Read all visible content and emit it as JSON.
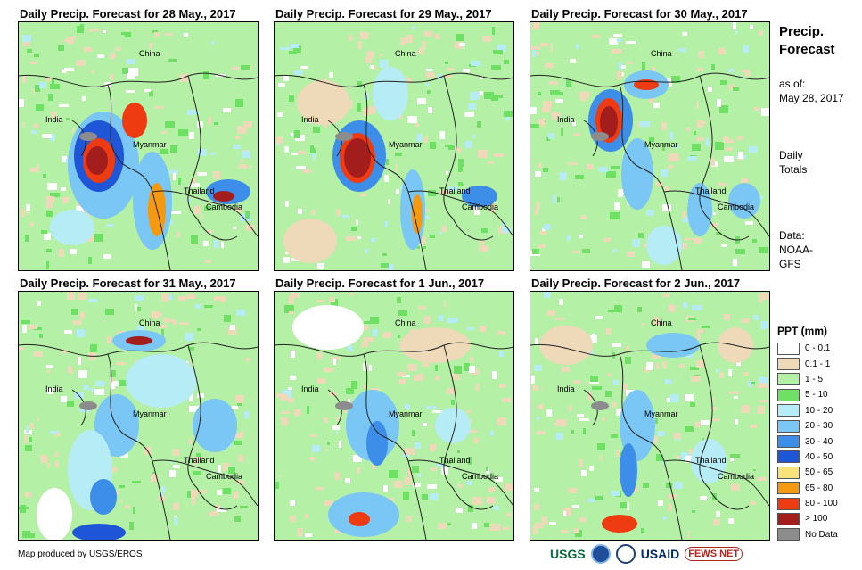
{
  "panels": [
    {
      "title": "Daily Precip. Forecast for 28 May., 2017",
      "labels": {
        "china": "China",
        "india": "India",
        "myanmar": "Myanmar",
        "thailand": "Thailand",
        "cambodia": "Cambodia"
      }
    },
    {
      "title": "Daily Precip. Forecast for 29 May., 2017",
      "labels": {
        "china": "China",
        "india": "India",
        "myanmar": "Myanmar",
        "thailand": "Thailand",
        "cambodia": "Cambodia"
      }
    },
    {
      "title": "Daily Precip. Forecast for 30 May., 2017",
      "labels": {
        "china": "China",
        "india": "India",
        "myanmar": "Myanmar",
        "thailand": "Thailand",
        "cambodia": "Cambodia"
      }
    },
    {
      "title": "Daily Precip. Forecast for 31 May., 2017",
      "labels": {
        "china": "China",
        "india": "India",
        "myanmar": "Myanmar",
        "thailand": "Thailand",
        "cambodia": "Cambodia"
      }
    },
    {
      "title": "Daily Precip. Forecast for 1 Jun., 2017",
      "labels": {
        "china": "China",
        "india": "India",
        "myanmar": "Myanmar",
        "thailand": "Thailand",
        "cambodia": "Cambodia"
      }
    },
    {
      "title": "Daily Precip. Forecast for 2 Jun., 2017",
      "labels": {
        "china": "China",
        "india": "India",
        "myanmar": "Myanmar",
        "thailand": "Thailand",
        "cambodia": "Cambodia"
      }
    }
  ],
  "sidebar": {
    "title_line1": "Precip.",
    "title_line2": "Forecast",
    "asof_line1": "as of:",
    "asof_line2": "May 28, 2017",
    "totals_line1": "Daily",
    "totals_line2": "Totals",
    "data_line1": "Data:",
    "data_line2": "NOAA-",
    "data_line3": "GFS"
  },
  "legend": {
    "title": "PPT (mm)",
    "items": [
      {
        "label": "0 - 0.1",
        "color": "#ffffff"
      },
      {
        "label": "0.1 - 1",
        "color": "#eed9b8"
      },
      {
        "label": "1 - 5",
        "color": "#b4f0a6"
      },
      {
        "label": "5 - 10",
        "color": "#6ee064"
      },
      {
        "label": "10 - 20",
        "color": "#b6ecf6"
      },
      {
        "label": "20 - 30",
        "color": "#7ac6f4"
      },
      {
        "label": "30 - 40",
        "color": "#3d8ee8"
      },
      {
        "label": "40 - 50",
        "color": "#1f56d8"
      },
      {
        "label": "50 - 65",
        "color": "#f8e27a"
      },
      {
        "label": "65 - 80",
        "color": "#f59a10"
      },
      {
        "label": "80 - 100",
        "color": "#ee3b12"
      },
      {
        "label": "> 100",
        "color": "#a41d1d"
      },
      {
        "label": "No Data",
        "color": "#8c8c8c"
      }
    ]
  },
  "footer": {
    "credit": "Map produced by USGS/EROS",
    "logos": {
      "usgs": "USGS",
      "usaid": "USAID",
      "fews": "FEWS NET"
    }
  }
}
